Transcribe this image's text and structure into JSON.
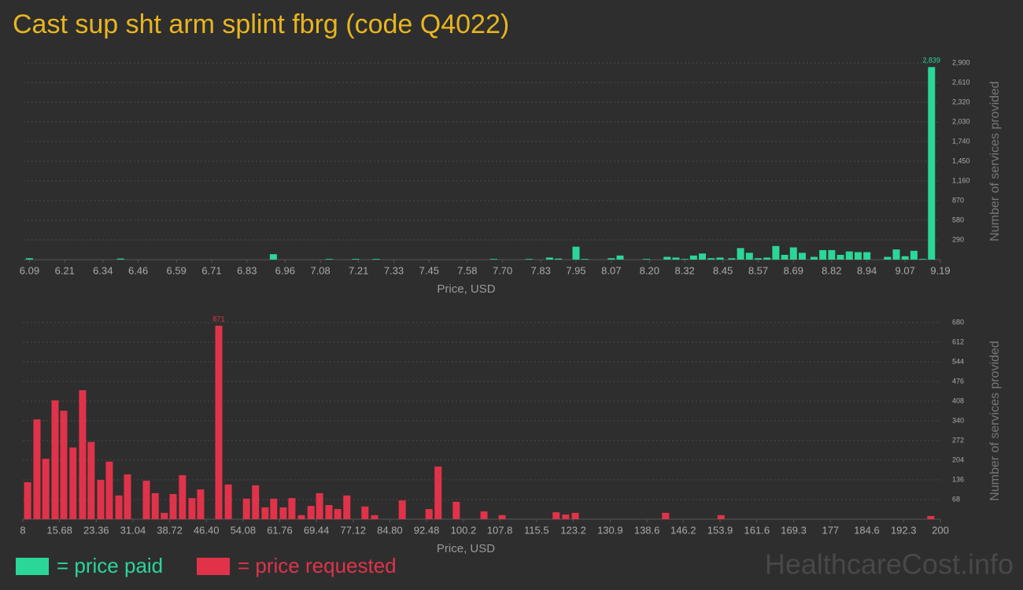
{
  "title": "Cast sup sht arm splint fbrg (code Q4022)",
  "watermark": "HealthcareCost.info",
  "chart_data": [
    {
      "type": "bar",
      "xlabel": "Price, USD",
      "ylabel": "Number of services provided",
      "grid": true,
      "x": [
        6.09,
        6.4,
        6.92,
        7.11,
        7.2,
        7.27,
        7.67,
        7.79,
        7.86,
        7.89,
        7.95,
        7.98,
        8.07,
        8.1,
        8.19,
        8.26,
        8.29,
        8.32,
        8.35,
        8.38,
        8.41,
        8.44,
        8.48,
        8.51,
        8.54,
        8.57,
        8.6,
        8.63,
        8.66,
        8.69,
        8.72,
        8.76,
        8.79,
        8.82,
        8.85,
        8.88,
        8.91,
        8.94,
        9.01,
        9.04,
        9.07,
        9.1,
        9.13,
        9.16
      ],
      "series": [
        {
          "name": "= price paid",
          "color": "#2bd699",
          "values": [
            20,
            15,
            80,
            10,
            10,
            10,
            10,
            10,
            30,
            15,
            190,
            10,
            20,
            60,
            10,
            40,
            30,
            10,
            60,
            90,
            20,
            30,
            20,
            170,
            100,
            20,
            30,
            200,
            70,
            180,
            100,
            40,
            140,
            140,
            70,
            120,
            110,
            110,
            40,
            150,
            50,
            130,
            10,
            2839
          ],
          "value_labels": [
            null,
            null,
            null,
            null,
            null,
            null,
            null,
            null,
            null,
            null,
            null,
            null,
            null,
            null,
            null,
            null,
            null,
            null,
            null,
            null,
            null,
            null,
            null,
            null,
            null,
            null,
            null,
            null,
            null,
            null,
            null,
            null,
            null,
            null,
            null,
            null,
            null,
            null,
            null,
            null,
            null,
            null,
            null,
            "2,839"
          ]
        }
      ],
      "xlim": [
        6.07,
        9.19
      ],
      "xticks": [
        6.09,
        6.21,
        6.34,
        6.46,
        6.59,
        6.71,
        6.83,
        6.96,
        7.08,
        7.21,
        7.33,
        7.45,
        7.58,
        {
          "value": 7.7,
          "label": "7.70"
        },
        7.83,
        7.95,
        8.07,
        {
          "value": 8.2,
          "label": "8.20"
        },
        8.32,
        8.45,
        8.57,
        8.69,
        8.82,
        8.94,
        9.07,
        9.19
      ],
      "ylim": [
        0,
        2900
      ],
      "yticks": [
        290,
        580,
        870,
        {
          "value": 1160,
          "label": "1,160"
        },
        {
          "value": 1450,
          "label": "1,450"
        },
        {
          "value": 1740,
          "label": "1,740"
        },
        {
          "value": 2030,
          "label": "2,030"
        },
        {
          "value": 2320,
          "label": "2,320"
        },
        {
          "value": 2610,
          "label": "2,610"
        },
        {
          "value": 2900,
          "label": "2,900"
        }
      ]
    },
    {
      "type": "bar",
      "xlabel": "Price, USD",
      "ylabel": "Number of services provided",
      "grid": true,
      "x": [
        9,
        10.96,
        12.8,
        14.75,
        16.56,
        18.5,
        20.5,
        22.3,
        24.3,
        26.1,
        28.1,
        29.9,
        33.85,
        35.7,
        37.6,
        39.45,
        41.4,
        43.4,
        45.2,
        49,
        51,
        54.8,
        56.7,
        58.7,
        60.5,
        62.5,
        64.3,
        66.3,
        68.3,
        70.1,
        72.05,
        73.9,
        75.8,
        79.6,
        81.6,
        87.4,
        93,
        94.9,
        98.7,
        104.5,
        108.3,
        119.6,
        121.6,
        123.6,
        142.5,
        154.1,
        198
      ],
      "series": [
        {
          "name": "= price requested",
          "color": "#e0334a",
          "values": [
            128,
            345,
            209,
            411,
            375,
            248,
            446,
            267,
            136,
            199,
            82,
            155,
            133,
            90,
            22,
            87,
            152,
            73,
            103,
            871,
            120,
            71,
            117,
            41,
            71,
            41,
            73,
            14,
            46,
            90,
            49,
            35,
            82,
            44,
            14,
            65,
            35,
            182,
            60,
            27,
            14,
            24,
            16,
            22,
            22,
            14,
            11
          ],
          "value_labels": [
            null,
            null,
            null,
            null,
            null,
            null,
            null,
            null,
            null,
            null,
            null,
            null,
            null,
            null,
            null,
            null,
            null,
            null,
            null,
            "871",
            null,
            null,
            null,
            null,
            null,
            null,
            null,
            null,
            null,
            null,
            null,
            null,
            null,
            null,
            null,
            null,
            null,
            null,
            null,
            null,
            null,
            null,
            null,
            null,
            null,
            null,
            null
          ]
        }
      ],
      "xlim": [
        8,
        200
      ],
      "xticks": [
        8,
        15.68,
        23.36,
        31.04,
        38.72,
        {
          "value": 46.4,
          "label": "46.40"
        },
        54.08,
        61.76,
        69.44,
        77.12,
        {
          "value": 84.8,
          "label": "84.80"
        },
        92.48,
        100.2,
        107.8,
        115.5,
        123.2,
        130.9,
        138.6,
        146.2,
        153.9,
        161.6,
        169.3,
        177,
        184.6,
        192.3,
        200
      ],
      "ylim": [
        0,
        680
      ],
      "yticks": [
        68,
        136,
        204,
        272,
        340,
        408,
        476,
        544,
        612,
        680
      ]
    }
  ]
}
